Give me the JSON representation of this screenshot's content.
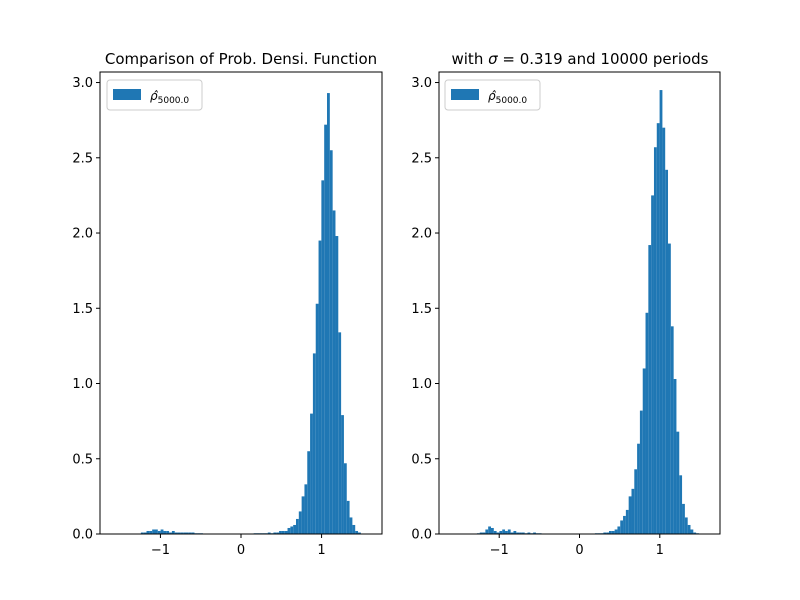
{
  "chart_data": [
    {
      "type": "bar",
      "title": "Comparison of Prob. Densi. Function",
      "xlabel": "",
      "ylabel": "",
      "xlim": [
        -1.75,
        1.75
      ],
      "ylim": [
        0,
        3.07
      ],
      "xticks": [
        -1,
        0,
        1
      ],
      "xtick_labels": [
        "−1",
        "0",
        "1"
      ],
      "yticks": [
        0.0,
        0.5,
        1.0,
        1.5,
        2.0,
        2.5,
        3.0
      ],
      "ytick_labels": [
        "0.0",
        "0.5",
        "1.0",
        "1.5",
        "2.0",
        "2.5",
        "3.0"
      ],
      "grid": false,
      "legend": {
        "location": "upper left",
        "label_base": "ρ̂",
        "label_sub": "5000.0"
      },
      "color": "#1f77b4",
      "bin_width": 0.035,
      "bin_centers": [
        -1.225,
        -1.19,
        -1.155,
        -1.12,
        -1.085,
        -1.05,
        -1.015,
        -0.98,
        -0.945,
        -0.91,
        -0.875,
        -0.84,
        -0.805,
        -0.77,
        -0.735,
        -0.7,
        -0.665,
        -0.63,
        -0.595,
        -0.56,
        -0.525,
        -0.49,
        0.175,
        0.21,
        0.245,
        0.28,
        0.315,
        0.35,
        0.385,
        0.42,
        0.455,
        0.49,
        0.525,
        0.56,
        0.595,
        0.63,
        0.665,
        0.7,
        0.735,
        0.77,
        0.805,
        0.84,
        0.875,
        0.91,
        0.945,
        0.98,
        1.015,
        1.05,
        1.085,
        1.12,
        1.155,
        1.19,
        1.225,
        1.26,
        1.295,
        1.33,
        1.365,
        1.4,
        1.435,
        1.47
      ],
      "values": [
        0.01,
        0.01,
        0.02,
        0.02,
        0.03,
        0.03,
        0.02,
        0.03,
        0.02,
        0.02,
        0.01,
        0.02,
        0.01,
        0.01,
        0.01,
        0.01,
        0.01,
        0.01,
        0.01,
        0.005,
        0.005,
        0.005,
        0.005,
        0.005,
        0.005,
        0.005,
        0.005,
        0.01,
        0.005,
        0.01,
        0.01,
        0.02,
        0.02,
        0.02,
        0.04,
        0.05,
        0.06,
        0.1,
        0.15,
        0.25,
        0.33,
        0.55,
        0.8,
        1.2,
        1.53,
        1.95,
        2.35,
        2.72,
        2.93,
        2.55,
        2.15,
        1.98,
        1.34,
        0.79,
        0.47,
        0.22,
        0.11,
        0.06,
        0.02,
        0.01
      ]
    },
    {
      "type": "bar",
      "title": "with σ = 0.319 and 10000 periods",
      "title_parts": {
        "prefix": "with ",
        "symbol": "σ",
        "rest": " = 0.319 and 10000 periods"
      },
      "xlabel": "",
      "ylabel": "",
      "xlim": [
        -1.75,
        1.75
      ],
      "ylim": [
        0,
        3.07
      ],
      "xticks": [
        -1,
        0,
        1
      ],
      "xtick_labels": [
        "−1",
        "0",
        "1"
      ],
      "yticks": [
        0.0,
        0.5,
        1.0,
        1.5,
        2.0,
        2.5,
        3.0
      ],
      "ytick_labels": [
        "0.0",
        "0.5",
        "1.0",
        "1.5",
        "2.0",
        "2.5",
        "3.0"
      ],
      "grid": false,
      "legend": {
        "location": "upper left",
        "label_base": "ρ̂",
        "label_sub": "5000.0"
      },
      "color": "#1f77b4",
      "bin_width": 0.035,
      "bin_centers": [
        -1.26,
        -1.225,
        -1.19,
        -1.155,
        -1.12,
        -1.085,
        -1.05,
        -1.015,
        -0.98,
        -0.945,
        -0.91,
        -0.875,
        -0.84,
        -0.805,
        -0.77,
        -0.735,
        -0.7,
        -0.665,
        -0.63,
        -0.595,
        -0.56,
        -0.525,
        -0.49,
        0.21,
        0.245,
        0.28,
        0.315,
        0.35,
        0.385,
        0.42,
        0.455,
        0.49,
        0.525,
        0.56,
        0.595,
        0.63,
        0.665,
        0.7,
        0.735,
        0.77,
        0.805,
        0.84,
        0.875,
        0.91,
        0.945,
        0.98,
        1.015,
        1.05,
        1.085,
        1.12,
        1.155,
        1.19,
        1.225,
        1.26,
        1.295,
        1.33,
        1.365,
        1.4,
        1.435,
        1.47
      ],
      "values": [
        0.005,
        0.01,
        0.01,
        0.03,
        0.05,
        0.04,
        0.02,
        0.01,
        0.02,
        0.03,
        0.02,
        0.03,
        0.01,
        0.02,
        0.01,
        0.01,
        0.01,
        0.005,
        0.01,
        0.005,
        0.01,
        0.005,
        0.005,
        0.005,
        0.005,
        0.005,
        0.01,
        0.01,
        0.02,
        0.02,
        0.03,
        0.05,
        0.09,
        0.12,
        0.16,
        0.25,
        0.3,
        0.43,
        0.6,
        0.82,
        1.1,
        1.47,
        1.92,
        2.25,
        2.57,
        2.73,
        2.95,
        2.7,
        2.42,
        1.93,
        1.38,
        1.03,
        0.68,
        0.39,
        0.2,
        0.11,
        0.06,
        0.03,
        0.01,
        0.005
      ]
    }
  ]
}
